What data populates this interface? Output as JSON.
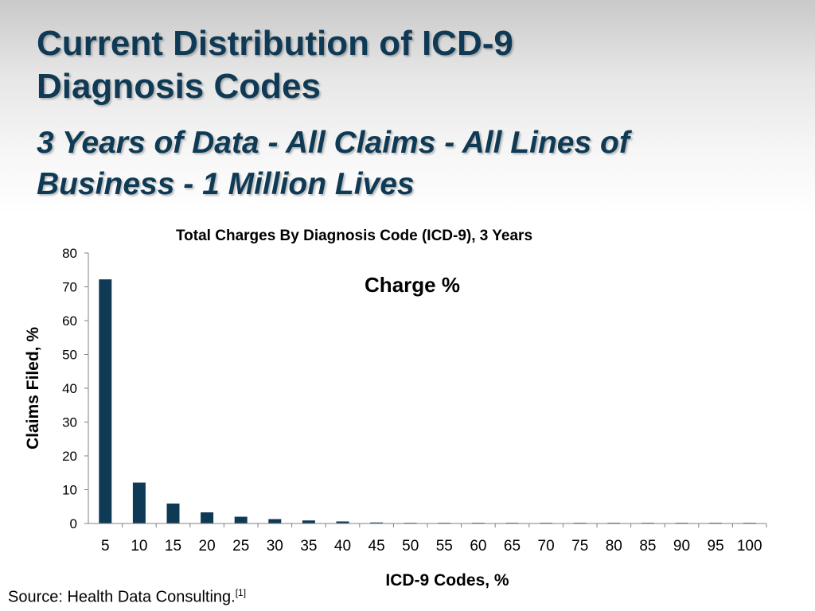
{
  "slide": {
    "title_line1": "Current Distribution of ICD-9",
    "title_line2": "Diagnosis Codes",
    "subtitle_line1": "3 Years of Data - All Claims - All Lines of",
    "subtitle_line2": "Business - 1 Million Lives",
    "source_text": "Source: Health Data Consulting.",
    "source_ref": "[1]"
  },
  "colors": {
    "title": "#0f3a55",
    "bar": "#0f3a55",
    "axis": "#808080"
  },
  "chart_data": {
    "type": "bar",
    "title": "Total Charges By Diagnosis Code (ICD-9), 3 Years",
    "annotation": "Charge %",
    "xlabel": "ICD-9 Codes, %",
    "ylabel": "Claims Filed, %",
    "ylim": [
      0,
      80
    ],
    "yticks": [
      0,
      10,
      20,
      30,
      40,
      50,
      60,
      70,
      80
    ],
    "grid": false,
    "legend": "none",
    "categories": [
      "5",
      "10",
      "15",
      "20",
      "25",
      "30",
      "35",
      "40",
      "45",
      "50",
      "55",
      "60",
      "65",
      "70",
      "75",
      "80",
      "85",
      "90",
      "95",
      "100"
    ],
    "values": [
      72.2,
      12.1,
      5.9,
      3.3,
      2.0,
      1.3,
      0.9,
      0.6,
      0.3,
      0.2,
      0.2,
      0.2,
      0.2,
      0.2,
      0.2,
      0.2,
      0.2,
      0.2,
      0.2,
      0.2
    ]
  }
}
